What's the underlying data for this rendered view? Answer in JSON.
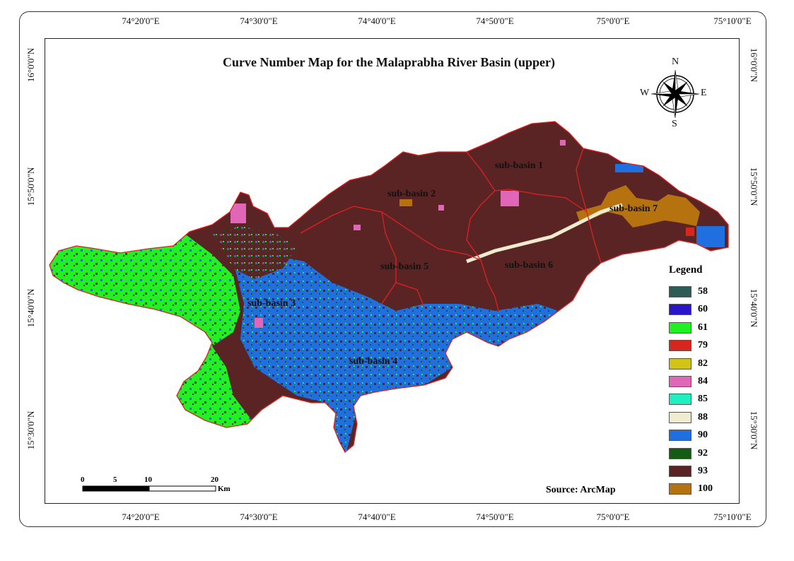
{
  "title": "Curve Number Map for the Malaprabha River Basin (upper)",
  "longitude_labels": [
    "74°20'0\"E",
    "74°30'0\"E",
    "74°40'0\"E",
    "74°50'0\"E",
    "75°0'0\"E",
    "75°10'0\"E"
  ],
  "latitude_labels": [
    "16°0'0\"N",
    "15°50'0\"N",
    "15°40'0\"N",
    "15°30'0\"N"
  ],
  "compass": {
    "north": "N",
    "south": "S",
    "east": "E",
    "west": "W"
  },
  "sub_basins": [
    "sub-basin 1",
    "sub-basin 2",
    "sub-basin 3",
    "sub-basin 4",
    "sub-basin 5",
    "sub-basin 6",
    "sub-basin 7"
  ],
  "legend": {
    "title": "Legend",
    "items": [
      {
        "label": "58",
        "color": "#2f5b57"
      },
      {
        "label": "60",
        "color": "#2a16c8"
      },
      {
        "label": "61",
        "color": "#22f022"
      },
      {
        "label": "79",
        "color": "#d8261c"
      },
      {
        "label": "82",
        "color": "#d2c414"
      },
      {
        "label": "84",
        "color": "#e066b8"
      },
      {
        "label": "85",
        "color": "#1ef0c0"
      },
      {
        "label": "88",
        "color": "#f1ecd0"
      },
      {
        "label": "90",
        "color": "#1f6fe0"
      },
      {
        "label": "92",
        "color": "#145c14"
      },
      {
        "label": "93",
        "color": "#5b2424"
      },
      {
        "label": "100",
        "color": "#b5720e"
      }
    ]
  },
  "scale_bar": {
    "ticks": [
      "0",
      "5",
      "10",
      "20"
    ],
    "unit": "Km"
  },
  "source": "Source: ArcMap"
}
